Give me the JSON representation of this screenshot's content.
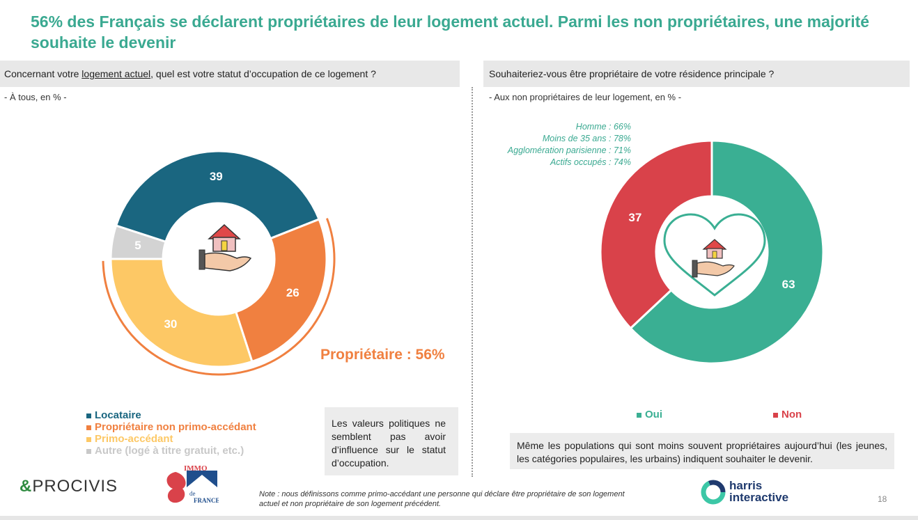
{
  "title": "56% des Français se déclarent propriétaires de leur logement actuel. Parmi les non propriétaires, une majorité souhaite le devenir",
  "left": {
    "question_pre": "Concernant votre ",
    "question_underlined": "logement actuel",
    "question_post": ", quel est votre statut d’occupation de ce logement ?",
    "subtitle": "- À tous, en % -",
    "owner_label": "Propriétaire : 56%",
    "legend": [
      "Locataire",
      "Propriétaire non primo-accédant",
      "Primo-accédant",
      "Autre (logé à titre gratuit, etc.)"
    ],
    "note": "Les valeurs politiques ne semblent pas avoir d’influence sur le statut d’occupation."
  },
  "right": {
    "question": "Souhaiteriez-vous être propriétaire de votre résidence principale ?",
    "subtitle": "- Aux non propriétaires de leur logement, en % -",
    "stats": [
      "Homme : 66%",
      "Moins de 35 ans : 78%",
      "Agglomération parisienne : 71%",
      "Actifs occupés : 74%"
    ],
    "legend": [
      "Oui",
      "Non"
    ],
    "note": "Même les populations qui sont moins souvent propriétaires aujourd’hui (les jeunes, les catégories populaires, les urbains) indiquent souhaiter le devenir."
  },
  "footnote": "Note : nous définissons comme primo-accédant une personne qui déclare être propriétaire de son logement actuel et non propriétaire de son logement précédent.",
  "page_number": "18",
  "logos": {
    "procivis_amp": "&",
    "procivis": "PROCIVIS",
    "immo": "IMMO",
    "de": "de",
    "france": "FRANCE",
    "harris1": "harris",
    "harris2": "interactive"
  },
  "chart_data": [
    {
      "type": "pie",
      "categories": [
        "Locataire",
        "Propriétaire non primo-accédant",
        "Primo-accédant",
        "Autre (logé à titre gratuit, etc.)"
      ],
      "values": [
        39,
        26,
        30,
        5
      ],
      "colors": [
        "#1a6680",
        "#f08040",
        "#fdc865",
        "#d3d3d3"
      ]
    },
    {
      "type": "pie",
      "categories": [
        "Oui",
        "Non"
      ],
      "values": [
        63,
        37
      ],
      "colors": [
        "#3aaf93",
        "#d9424a"
      ]
    }
  ]
}
